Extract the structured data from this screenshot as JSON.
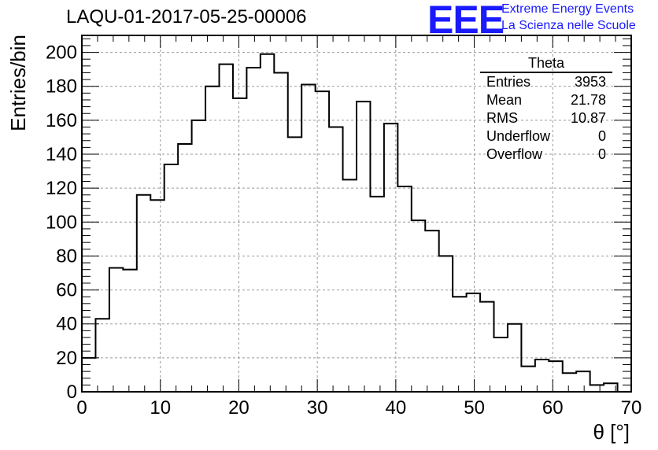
{
  "header": {
    "title": "LAQU-01-2017-05-25-00006"
  },
  "logo": {
    "mark": "EEE",
    "line1": "Extreme Energy Events",
    "line2": "La Scienza nelle Scuole"
  },
  "stats": {
    "title": "Theta",
    "rows": [
      {
        "label": "Entries",
        "value": "3953"
      },
      {
        "label": "Mean",
        "value": "21.78"
      },
      {
        "label": "RMS",
        "value": "10.87"
      },
      {
        "label": "Underflow",
        "value": "0"
      },
      {
        "label": "Overflow",
        "value": "0"
      }
    ]
  },
  "chart_data": {
    "type": "histogram",
    "xlabel": "θ [°]",
    "ylabel": "Entries/bin",
    "xlim": [
      0,
      70
    ],
    "ylim": [
      0,
      210
    ],
    "bin_width": 1.75,
    "grid": true,
    "xticks": [
      0,
      10,
      20,
      30,
      40,
      50,
      60,
      70
    ],
    "yticks": [
      0,
      20,
      40,
      60,
      80,
      100,
      120,
      140,
      160,
      180,
      200
    ],
    "values": [
      20,
      43,
      73,
      72,
      116,
      113,
      134,
      146,
      160,
      180,
      193,
      173,
      191,
      199,
      188,
      150,
      181,
      177,
      156,
      125,
      171,
      115,
      158,
      121,
      101,
      95,
      80,
      56,
      58,
      53,
      32,
      40,
      15,
      19,
      18,
      11,
      12,
      4,
      5,
      0
    ]
  }
}
